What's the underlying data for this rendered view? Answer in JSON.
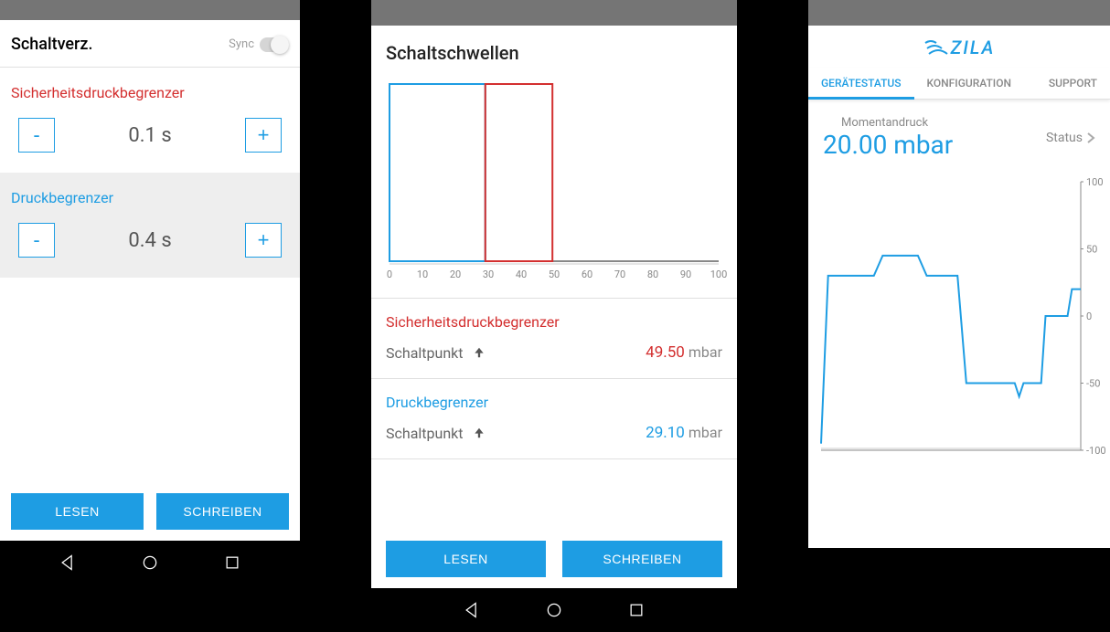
{
  "colors": {
    "accent": "#1e9de3",
    "red": "#d32f2f",
    "grey": "#888888",
    "statusbar": "#757575",
    "bg_alt": "#eeeeee"
  },
  "screen1": {
    "title": "Schaltverz.",
    "sync_label": "Sync",
    "sync_on": false,
    "section1": {
      "label": "Sicherheitsdruckbegrenzer",
      "value": "0.1 s",
      "color": "#d32f2f"
    },
    "section2": {
      "label": "Druckbegrenzer",
      "value": "0.4 s",
      "color": "#1e9de3"
    },
    "btn_read": "LESEN",
    "btn_write": "SCHREIBEN"
  },
  "screen2": {
    "title": "Schaltschwellen",
    "chart": {
      "xmin": 0,
      "xmax": 100,
      "xtick_step": 10,
      "blue_x": 29.1,
      "red_x": 49.5,
      "blue_color": "#1e9de3",
      "red_color": "#d32f2f",
      "axis_color": "#888888"
    },
    "section1": {
      "title": "Sicherheitsdruckbegrenzer",
      "row_label": "Schaltpunkt",
      "value": "49.50",
      "unit": "mbar",
      "value_color": "#d32f2f"
    },
    "section2": {
      "title": "Druckbegrenzer",
      "row_label": "Schaltpunkt",
      "value": "29.10",
      "unit": "mbar",
      "value_color": "#1e9de3"
    },
    "btn_read": "LESEN",
    "btn_write": "SCHREIBEN"
  },
  "screen3": {
    "logo_text": "ZILA",
    "tabs": [
      "GERÄTESTATUS",
      "KONFIGURATION",
      "SUPPORT"
    ],
    "active_tab": 0,
    "momentan_label": "Momentandruck",
    "pressure_value": "20.00 mbar",
    "status_label": "Status",
    "chart": {
      "ymin": -100,
      "ymax": 100,
      "ytick_step": 50,
      "line_color": "#1e9de3",
      "points": [
        [
          0,
          -95
        ],
        [
          8,
          30
        ],
        [
          60,
          30
        ],
        [
          70,
          45
        ],
        [
          110,
          45
        ],
        [
          120,
          30
        ],
        [
          155,
          30
        ],
        [
          165,
          -50
        ],
        [
          220,
          -50
        ],
        [
          225,
          -60
        ],
        [
          230,
          -50
        ],
        [
          250,
          -50
        ],
        [
          255,
          0
        ],
        [
          280,
          0
        ],
        [
          285,
          20
        ],
        [
          295,
          20
        ]
      ]
    }
  }
}
